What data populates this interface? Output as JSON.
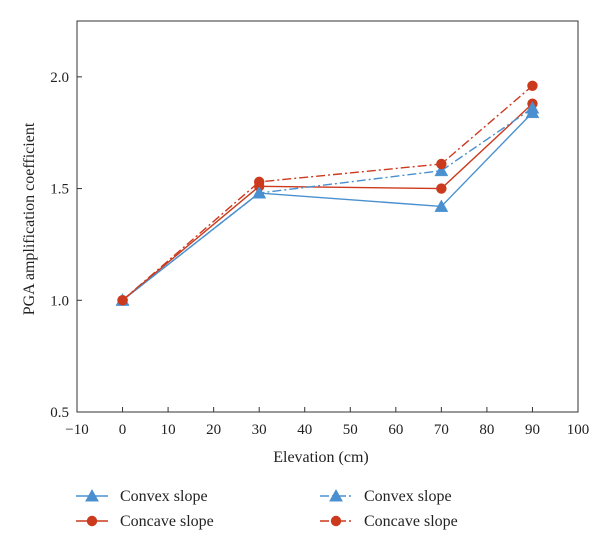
{
  "chart_data": {
    "type": "line",
    "title": "",
    "xlabel": "Elevation (cm)",
    "ylabel": "PGA amplification coefficient",
    "xlim": [
      -10,
      100
    ],
    "ylim": [
      0.5,
      2.25
    ],
    "xticks": [
      -10,
      0,
      10,
      20,
      30,
      40,
      50,
      60,
      70,
      80,
      90,
      100
    ],
    "xtick_labels": [
      "−10",
      "0",
      "10",
      "20",
      "30",
      "40",
      "50",
      "60",
      "70",
      "80",
      "90",
      "100"
    ],
    "yticks": [
      0.5,
      1.0,
      1.5,
      2.0
    ],
    "ytick_labels": [
      "0.5",
      "1.0",
      "1.5",
      "2.0"
    ],
    "grid": false,
    "legend_position": "bottom",
    "x": [
      0,
      30,
      70,
      90
    ],
    "series": [
      {
        "name": "Convex slope",
        "values": [
          1.0,
          1.48,
          1.42,
          1.84
        ],
        "color": "#4a90d0",
        "line_style": "solid",
        "marker": "triangle"
      },
      {
        "name": "Concave slope",
        "values": [
          1.0,
          1.51,
          1.5,
          1.88
        ],
        "color": "#cc3a1e",
        "line_style": "solid",
        "marker": "circle"
      },
      {
        "name": "Convex slope",
        "values": [
          1.0,
          1.48,
          1.58,
          1.86
        ],
        "color": "#4a90d0",
        "line_style": "dashdot",
        "marker": "triangle"
      },
      {
        "name": "Concave slope",
        "values": [
          1.0,
          1.53,
          1.61,
          1.96
        ],
        "color": "#cc3a1e",
        "line_style": "dashdot",
        "marker": "circle"
      }
    ]
  }
}
